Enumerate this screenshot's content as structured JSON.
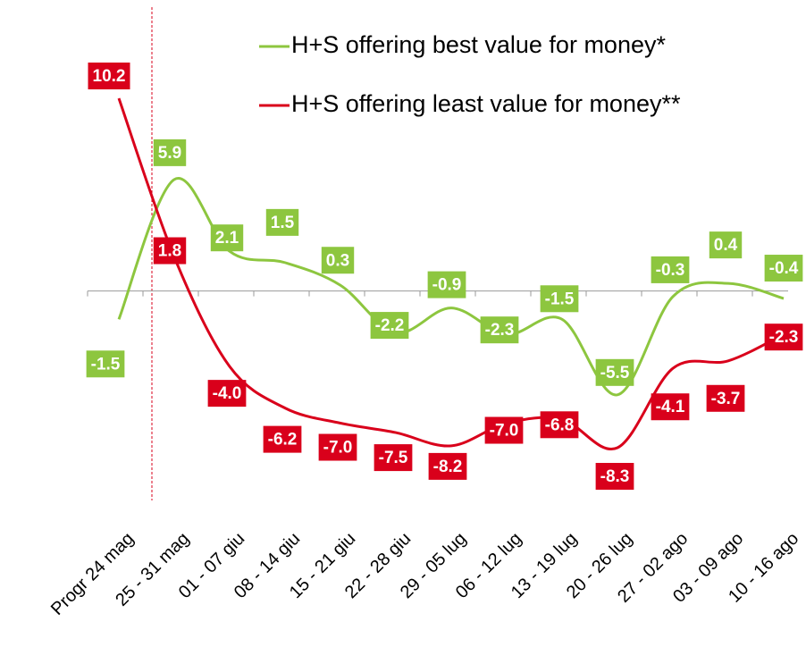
{
  "chart_data": {
    "type": "line",
    "categories": [
      "Progr 24 mag",
      "25 - 31 mag",
      "01 - 07 giu",
      "08 - 14 giu",
      "15 - 21 giu",
      "22 - 28 giu",
      "29 - 05 lug",
      "06 - 12 lug",
      "13 - 19 lug",
      "20 - 26 lug",
      "27 - 02 ago",
      "03 - 09 ago",
      "10 - 16 ago"
    ],
    "series": [
      {
        "name": "H+S offering best value for money*",
        "color": "#8dc63f",
        "values": [
          -1.5,
          5.9,
          2.1,
          1.5,
          0.3,
          -2.2,
          -0.9,
          -2.3,
          -1.5,
          -5.5,
          -0.3,
          0.4,
          -0.4
        ]
      },
      {
        "name": "H+S offering least value for money**",
        "color": "#d9001b",
        "values": [
          10.2,
          1.8,
          -4.0,
          -6.2,
          -7.0,
          -7.5,
          -8.2,
          -7.0,
          -6.8,
          -8.3,
          -4.1,
          -3.7,
          -2.3
        ],
        "value_labels": [
          "10.2",
          "1.8",
          "-4.0",
          "-6.2",
          "-7.0",
          "-7.5",
          "-8.2",
          "-7.0",
          "-6.8",
          "-8.3",
          "-4.1",
          "-3.7",
          "-2.3"
        ]
      }
    ]
  }
}
